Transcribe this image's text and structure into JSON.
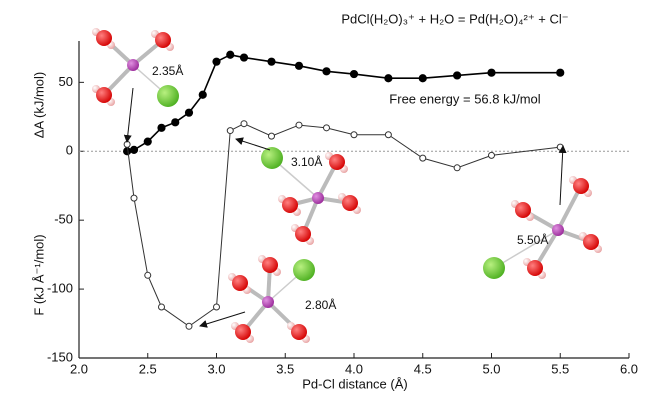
{
  "chart_data": {
    "type": "line",
    "equation": "PdCl(H₂O)₃⁺ + H₂O = Pd(H₂O)₄²⁺ + Cl⁻",
    "free_energy": "Free energy = 56.8 kJ/mol",
    "xlabel": "Pd-Cl distance (Å)",
    "ylabel_top": "ΔA (kJ/mol)",
    "ylabel_bottom": "F (kJ Å⁻¹/mol)",
    "distance_labels": [
      "2.35Å",
      "3.10Å",
      "2.80Å",
      "5.50Å"
    ],
    "xlim": [
      2.0,
      6.0
    ],
    "xticks": [
      {
        "value": 2,
        "label": "2.0"
      },
      {
        "value": 2.5,
        "label": "2.5"
      },
      {
        "value": 3,
        "label": "3.0"
      },
      {
        "value": 3.5,
        "label": "3.5"
      },
      {
        "value": 4,
        "label": "4.0"
      },
      {
        "value": 4.5,
        "label": "4.5"
      },
      {
        "value": 5,
        "label": "5.0"
      },
      {
        "value": 5.5,
        "label": "5.5"
      },
      {
        "value": 6,
        "label": "6.0"
      }
    ],
    "ylim": [
      -150,
      80
    ],
    "yticks": [
      -150,
      -100,
      -50,
      0,
      50
    ],
    "series": [
      {
        "color": "#000000",
        "filled": true,
        "x": [
          2.35,
          2.4,
          2.5,
          2.6,
          2.7,
          2.8,
          2.9,
          3.0,
          3.1,
          3.2,
          3.4,
          3.6,
          3.8,
          4.0,
          4.25,
          4.5,
          4.75,
          5.0,
          5.5
        ],
        "values": [
          0,
          1,
          7,
          17,
          21,
          28,
          41,
          65,
          70,
          68,
          65,
          62,
          58,
          56,
          53,
          53,
          55,
          57,
          57
        ]
      },
      {
        "color": "#333333",
        "filled": false,
        "x": [
          2.35,
          2.4,
          2.5,
          2.6,
          2.8,
          3.0,
          3.1,
          3.2,
          3.4,
          3.6,
          3.8,
          4.0,
          4.25,
          4.5,
          4.75,
          5.0,
          5.5
        ],
        "values": [
          5,
          -34,
          -90,
          -113,
          -127,
          -113,
          15,
          20,
          11,
          19,
          17,
          12,
          12,
          -5,
          -12,
          -3,
          3
        ]
      }
    ]
  }
}
